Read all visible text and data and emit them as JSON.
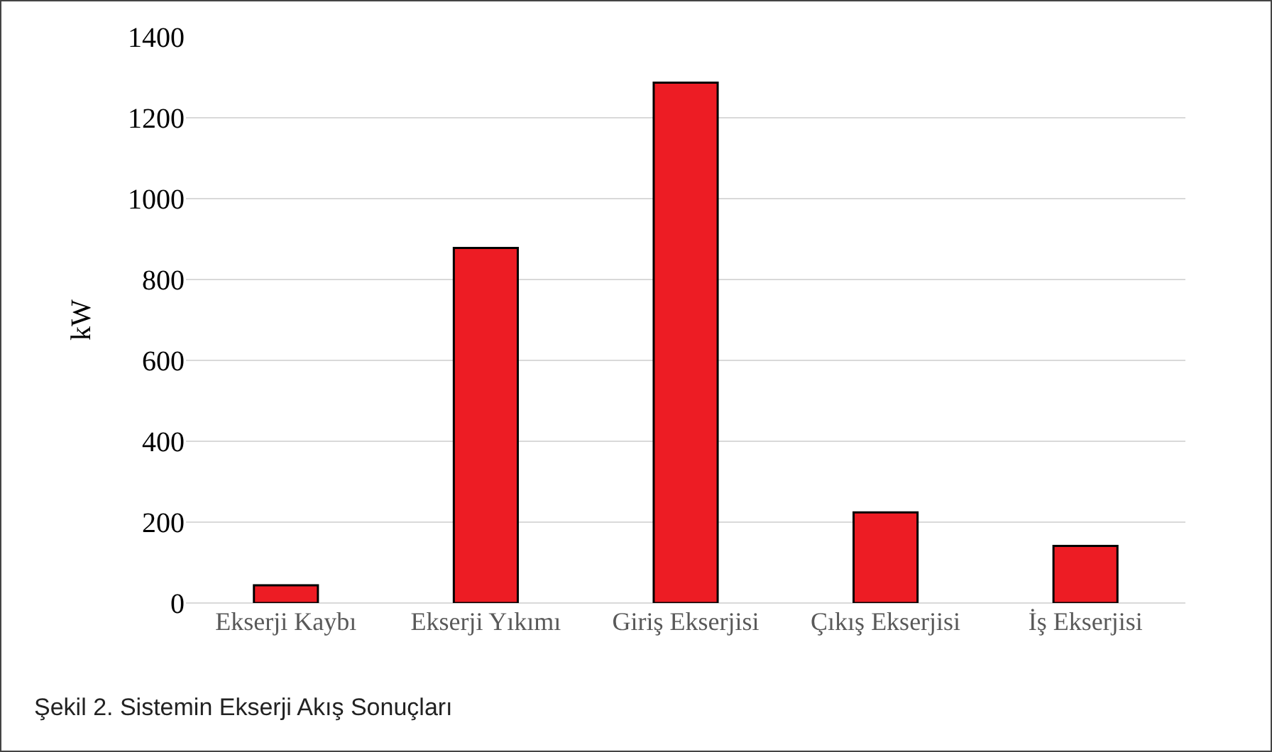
{
  "chart_data": {
    "type": "bar",
    "ylabel": "kW",
    "categories": [
      "Ekserji Kaybı",
      "Ekserji Yıkımı",
      "Giriş Ekserjisi",
      "Çıkış Ekserjisi",
      "İş Ekserjisi"
    ],
    "values": [
      44,
      878,
      1287,
      224,
      141
    ],
    "color": "#ed1c24",
    "ylim": [
      0,
      1400
    ],
    "yticks": [
      0,
      200,
      400,
      600,
      800,
      1000,
      1200,
      1400
    ],
    "grid": "y",
    "annotations": [
      "Şekil 2. Sistemin Ekserji Akış Sonuçları"
    ]
  }
}
